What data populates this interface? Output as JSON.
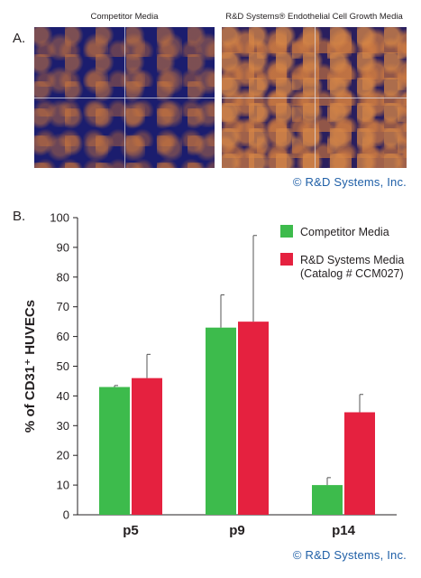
{
  "panel_a": {
    "label": "A.",
    "images": [
      {
        "caption": "Competitor Media"
      },
      {
        "caption": "R&D Systems® Endothelial Cell Growth Media"
      }
    ],
    "copyright": "© R&D Systems, Inc."
  },
  "panel_b": {
    "label": "B.",
    "copyright": "© R&D Systems, Inc."
  },
  "colors": {
    "competitor": "#3dbb4c",
    "rnd": "#e5213f"
  },
  "chart_data": {
    "type": "bar",
    "categories": [
      "p5",
      "p9",
      "p14"
    ],
    "series": [
      {
        "name": "Competitor Media",
        "values": [
          43,
          63,
          10
        ],
        "errors": [
          0.5,
          11,
          2.5
        ]
      },
      {
        "name": "R&D Systems Media",
        "name_line2": "(Catalog # CCM027)",
        "values": [
          46,
          65,
          34.5
        ],
        "errors": [
          8,
          29,
          6
        ]
      }
    ],
    "ylabel": "% of CD31⁺ HUVECs",
    "ylim": [
      0,
      100
    ],
    "yticks": [
      0,
      10,
      20,
      30,
      40,
      50,
      60,
      70,
      80,
      90,
      100
    ],
    "grid": false,
    "legend": "top-right"
  }
}
